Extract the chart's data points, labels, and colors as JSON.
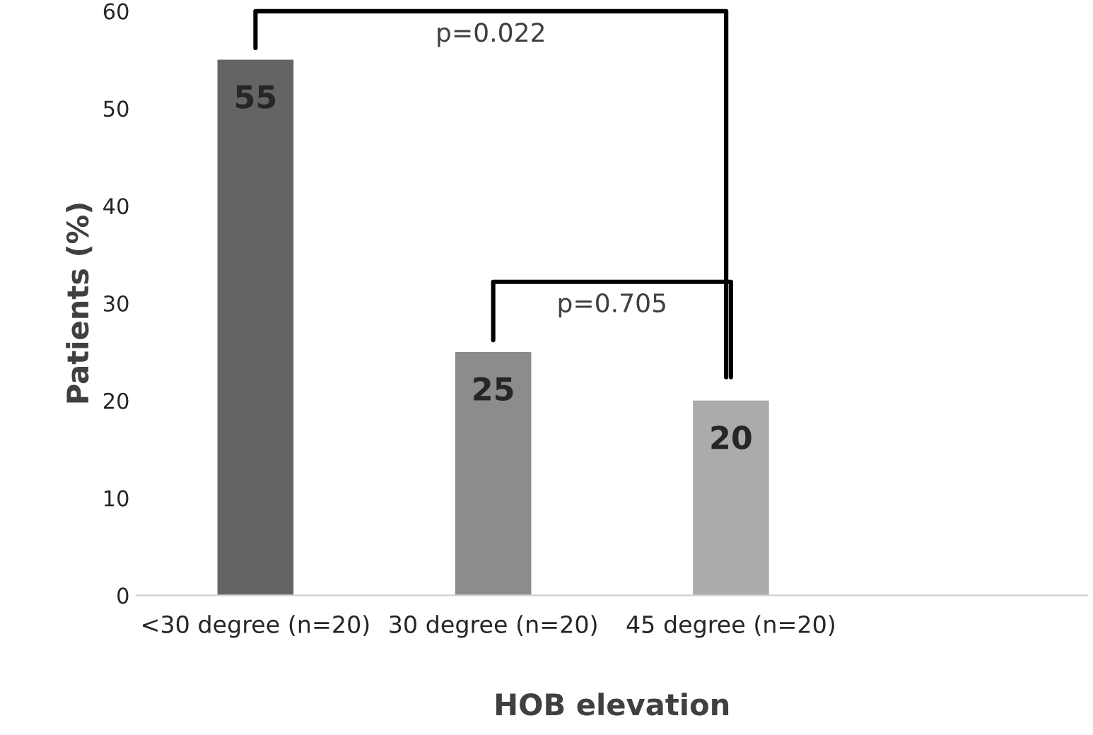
{
  "chart_data": {
    "type": "bar",
    "xlabel": "HOB elevation",
    "ylabel": "Patients (%)",
    "categories": [
      "<30 degree (n=20)",
      "30 degree (n=20)",
      "45 degree (n=20)",
      null
    ],
    "values": [
      55,
      25,
      20,
      null
    ],
    "colors": [
      "#646464",
      "#8c8c8c",
      "#ababab",
      "#ababab"
    ],
    "ylim": [
      0,
      60
    ],
    "yticks": [
      0,
      10,
      20,
      30,
      40,
      50,
      60
    ],
    "data_labels": true,
    "grid": false,
    "legend": false,
    "annotations": [
      "p=0.022",
      "p=0.705"
    ]
  }
}
